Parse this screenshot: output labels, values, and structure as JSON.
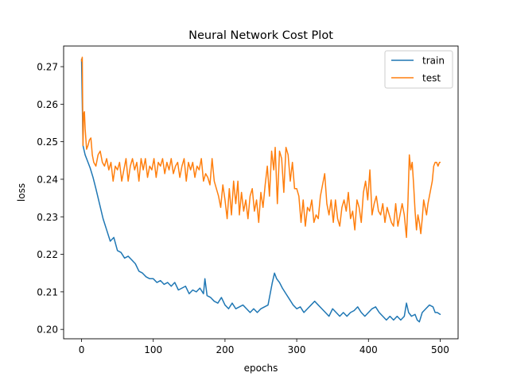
{
  "chart_data": {
    "type": "line",
    "title": "Neural Network Cost Plot",
    "xlabel": "epochs",
    "ylabel": "loss",
    "xlim": [
      -25,
      525
    ],
    "ylim": [
      0.1975,
      0.2755
    ],
    "xticks": [
      0,
      100,
      200,
      300,
      400,
      500
    ],
    "yticks": [
      0.2,
      0.21,
      0.22,
      0.23,
      0.24,
      0.25,
      0.26,
      0.27
    ],
    "ytick_labels": [
      "0.20",
      "0.21",
      "0.22",
      "0.23",
      "0.24",
      "0.25",
      "0.26",
      "0.27"
    ],
    "legend_position": "top-right",
    "grid": false,
    "series": [
      {
        "name": "train",
        "color": "#1f77b4",
        "points": [
          [
            0,
            0.272
          ],
          [
            2,
            0.249
          ],
          [
            5,
            0.2465
          ],
          [
            8,
            0.245
          ],
          [
            12,
            0.243
          ],
          [
            16,
            0.2405
          ],
          [
            20,
            0.2375
          ],
          [
            25,
            0.2335
          ],
          [
            30,
            0.2295
          ],
          [
            35,
            0.2265
          ],
          [
            40,
            0.2235
          ],
          [
            45,
            0.2245
          ],
          [
            50,
            0.221
          ],
          [
            55,
            0.2205
          ],
          [
            60,
            0.219
          ],
          [
            65,
            0.2195
          ],
          [
            70,
            0.2185
          ],
          [
            75,
            0.2175
          ],
          [
            80,
            0.2155
          ],
          [
            85,
            0.215
          ],
          [
            90,
            0.214
          ],
          [
            95,
            0.2135
          ],
          [
            100,
            0.2135
          ],
          [
            105,
            0.2125
          ],
          [
            110,
            0.213
          ],
          [
            115,
            0.212
          ],
          [
            120,
            0.2125
          ],
          [
            125,
            0.2115
          ],
          [
            130,
            0.2125
          ],
          [
            135,
            0.2105
          ],
          [
            140,
            0.211
          ],
          [
            145,
            0.2115
          ],
          [
            150,
            0.2095
          ],
          [
            155,
            0.2105
          ],
          [
            160,
            0.21
          ],
          [
            165,
            0.211
          ],
          [
            170,
            0.2095
          ],
          [
            172,
            0.2135
          ],
          [
            175,
            0.209
          ],
          [
            180,
            0.2085
          ],
          [
            185,
            0.2075
          ],
          [
            190,
            0.207
          ],
          [
            195,
            0.2085
          ],
          [
            200,
            0.2065
          ],
          [
            205,
            0.2055
          ],
          [
            210,
            0.207
          ],
          [
            215,
            0.2055
          ],
          [
            220,
            0.206
          ],
          [
            225,
            0.2065
          ],
          [
            230,
            0.2055
          ],
          [
            235,
            0.2045
          ],
          [
            240,
            0.2055
          ],
          [
            245,
            0.2045
          ],
          [
            250,
            0.2055
          ],
          [
            255,
            0.206
          ],
          [
            260,
            0.2065
          ],
          [
            263,
            0.2095
          ],
          [
            266,
            0.2125
          ],
          [
            269,
            0.215
          ],
          [
            272,
            0.2135
          ],
          [
            276,
            0.2125
          ],
          [
            280,
            0.211
          ],
          [
            285,
            0.2095
          ],
          [
            290,
            0.208
          ],
          [
            295,
            0.2065
          ],
          [
            300,
            0.2055
          ],
          [
            305,
            0.206
          ],
          [
            310,
            0.2045
          ],
          [
            315,
            0.2055
          ],
          [
            320,
            0.2065
          ],
          [
            325,
            0.2075
          ],
          [
            330,
            0.2065
          ],
          [
            335,
            0.2055
          ],
          [
            340,
            0.2045
          ],
          [
            345,
            0.2035
          ],
          [
            350,
            0.2055
          ],
          [
            355,
            0.2045
          ],
          [
            360,
            0.2035
          ],
          [
            365,
            0.2045
          ],
          [
            370,
            0.2035
          ],
          [
            375,
            0.2045
          ],
          [
            380,
            0.205
          ],
          [
            385,
            0.206
          ],
          [
            390,
            0.2045
          ],
          [
            395,
            0.2035
          ],
          [
            400,
            0.2045
          ],
          [
            405,
            0.2055
          ],
          [
            410,
            0.206
          ],
          [
            415,
            0.2045
          ],
          [
            420,
            0.2035
          ],
          [
            425,
            0.2025
          ],
          [
            430,
            0.2035
          ],
          [
            435,
            0.2025
          ],
          [
            440,
            0.2035
          ],
          [
            445,
            0.2025
          ],
          [
            450,
            0.2035
          ],
          [
            453,
            0.207
          ],
          [
            456,
            0.2045
          ],
          [
            460,
            0.2035
          ],
          [
            465,
            0.204
          ],
          [
            468,
            0.2025
          ],
          [
            471,
            0.202
          ],
          [
            475,
            0.2045
          ],
          [
            480,
            0.2055
          ],
          [
            485,
            0.2065
          ],
          [
            490,
            0.206
          ],
          [
            493,
            0.2045
          ],
          [
            496,
            0.2045
          ],
          [
            500,
            0.204
          ]
        ]
      },
      {
        "name": "test",
        "color": "#ff7f0e",
        "points": [
          [
            0,
            0.2715
          ],
          [
            1,
            0.2725
          ],
          [
            2,
            0.249
          ],
          [
            3,
            0.2575
          ],
          [
            4,
            0.258
          ],
          [
            5,
            0.2535
          ],
          [
            7,
            0.248
          ],
          [
            9,
            0.249
          ],
          [
            11,
            0.2505
          ],
          [
            13,
            0.251
          ],
          [
            15,
            0.2465
          ],
          [
            17,
            0.2445
          ],
          [
            20,
            0.2435
          ],
          [
            23,
            0.2465
          ],
          [
            26,
            0.2475
          ],
          [
            29,
            0.2445
          ],
          [
            32,
            0.2435
          ],
          [
            35,
            0.2455
          ],
          [
            38,
            0.2425
          ],
          [
            41,
            0.2445
          ],
          [
            44,
            0.2395
          ],
          [
            47,
            0.2435
          ],
          [
            50,
            0.2425
          ],
          [
            53,
            0.2445
          ],
          [
            56,
            0.2395
          ],
          [
            59,
            0.2425
          ],
          [
            62,
            0.2455
          ],
          [
            65,
            0.2395
          ],
          [
            68,
            0.2435
          ],
          [
            71,
            0.2455
          ],
          [
            74,
            0.2425
          ],
          [
            77,
            0.2445
          ],
          [
            80,
            0.2395
          ],
          [
            83,
            0.2455
          ],
          [
            86,
            0.2425
          ],
          [
            89,
            0.2455
          ],
          [
            92,
            0.2405
          ],
          [
            95,
            0.2435
          ],
          [
            98,
            0.2425
          ],
          [
            101,
            0.2455
          ],
          [
            104,
            0.2405
          ],
          [
            107,
            0.2445
          ],
          [
            110,
            0.2435
          ],
          [
            113,
            0.2455
          ],
          [
            116,
            0.2415
          ],
          [
            119,
            0.2445
          ],
          [
            122,
            0.2425
          ],
          [
            125,
            0.2455
          ],
          [
            128,
            0.2415
          ],
          [
            131,
            0.2435
          ],
          [
            134,
            0.2445
          ],
          [
            137,
            0.2405
          ],
          [
            140,
            0.2435
          ],
          [
            143,
            0.2455
          ],
          [
            146,
            0.2395
          ],
          [
            149,
            0.2445
          ],
          [
            152,
            0.2425
          ],
          [
            155,
            0.2445
          ],
          [
            158,
            0.2405
          ],
          [
            161,
            0.2435
          ],
          [
            164,
            0.2425
          ],
          [
            167,
            0.2455
          ],
          [
            170,
            0.2395
          ],
          [
            173,
            0.2415
          ],
          [
            176,
            0.2405
          ],
          [
            179,
            0.2385
          ],
          [
            182,
            0.2455
          ],
          [
            185,
            0.2395
          ],
          [
            188,
            0.2375
          ],
          [
            191,
            0.2355
          ],
          [
            194,
            0.2325
          ],
          [
            197,
            0.2385
          ],
          [
            200,
            0.2345
          ],
          [
            203,
            0.2295
          ],
          [
            206,
            0.2375
          ],
          [
            209,
            0.2305
          ],
          [
            212,
            0.2395
          ],
          [
            215,
            0.2335
          ],
          [
            218,
            0.2395
          ],
          [
            220,
            0.2305
          ],
          [
            223,
            0.2365
          ],
          [
            226,
            0.2315
          ],
          [
            229,
            0.2345
          ],
          [
            232,
            0.2295
          ],
          [
            235,
            0.2355
          ],
          [
            238,
            0.2375
          ],
          [
            241,
            0.2315
          ],
          [
            244,
            0.2345
          ],
          [
            247,
            0.2285
          ],
          [
            250,
            0.2365
          ],
          [
            253,
            0.2325
          ],
          [
            256,
            0.2385
          ],
          [
            259,
            0.2435
          ],
          [
            262,
            0.2355
          ],
          [
            265,
            0.2475
          ],
          [
            268,
            0.2425
          ],
          [
            270,
            0.2485
          ],
          [
            273,
            0.2335
          ],
          [
            276,
            0.2475
          ],
          [
            279,
            0.2455
          ],
          [
            282,
            0.2365
          ],
          [
            285,
            0.2485
          ],
          [
            288,
            0.2465
          ],
          [
            291,
            0.2395
          ],
          [
            294,
            0.2445
          ],
          [
            297,
            0.2375
          ],
          [
            300,
            0.2375
          ],
          [
            303,
            0.2355
          ],
          [
            306,
            0.2285
          ],
          [
            309,
            0.2345
          ],
          [
            312,
            0.2275
          ],
          [
            315,
            0.2325
          ],
          [
            318,
            0.2315
          ],
          [
            321,
            0.2345
          ],
          [
            324,
            0.2285
          ],
          [
            327,
            0.2305
          ],
          [
            330,
            0.2295
          ],
          [
            333,
            0.2355
          ],
          [
            336,
            0.2385
          ],
          [
            339,
            0.2415
          ],
          [
            342,
            0.2335
          ],
          [
            345,
            0.2305
          ],
          [
            348,
            0.2345
          ],
          [
            351,
            0.2285
          ],
          [
            354,
            0.2345
          ],
          [
            357,
            0.2295
          ],
          [
            360,
            0.2275
          ],
          [
            363,
            0.2325
          ],
          [
            366,
            0.2345
          ],
          [
            369,
            0.2315
          ],
          [
            372,
            0.2365
          ],
          [
            375,
            0.2295
          ],
          [
            378,
            0.2315
          ],
          [
            381,
            0.2265
          ],
          [
            384,
            0.2345
          ],
          [
            387,
            0.2325
          ],
          [
            390,
            0.2285
          ],
          [
            393,
            0.2365
          ],
          [
            396,
            0.2395
          ],
          [
            399,
            0.2345
          ],
          [
            402,
            0.2425
          ],
          [
            405,
            0.2305
          ],
          [
            408,
            0.2335
          ],
          [
            411,
            0.2355
          ],
          [
            414,
            0.2315
          ],
          [
            417,
            0.2305
          ],
          [
            420,
            0.2335
          ],
          [
            423,
            0.2285
          ],
          [
            426,
            0.2325
          ],
          [
            429,
            0.2305
          ],
          [
            432,
            0.2285
          ],
          [
            435,
            0.2275
          ],
          [
            438,
            0.2335
          ],
          [
            441,
            0.2275
          ],
          [
            444,
            0.2305
          ],
          [
            447,
            0.2335
          ],
          [
            450,
            0.2305
          ],
          [
            453,
            0.2245
          ],
          [
            455,
            0.2335
          ],
          [
            457,
            0.2465
          ],
          [
            459,
            0.2425
          ],
          [
            461,
            0.2445
          ],
          [
            463,
            0.2385
          ],
          [
            465,
            0.2315
          ],
          [
            467,
            0.2265
          ],
          [
            469,
            0.2305
          ],
          [
            471,
            0.2285
          ],
          [
            473,
            0.2255
          ],
          [
            475,
            0.2295
          ],
          [
            477,
            0.2345
          ],
          [
            479,
            0.2325
          ],
          [
            481,
            0.2305
          ],
          [
            483,
            0.2335
          ],
          [
            485,
            0.2355
          ],
          [
            487,
            0.2375
          ],
          [
            489,
            0.2395
          ],
          [
            491,
            0.2435
          ],
          [
            493,
            0.2445
          ],
          [
            495,
            0.2445
          ],
          [
            497,
            0.2435
          ],
          [
            499,
            0.2445
          ],
          [
            500,
            0.2445
          ]
        ]
      }
    ]
  }
}
